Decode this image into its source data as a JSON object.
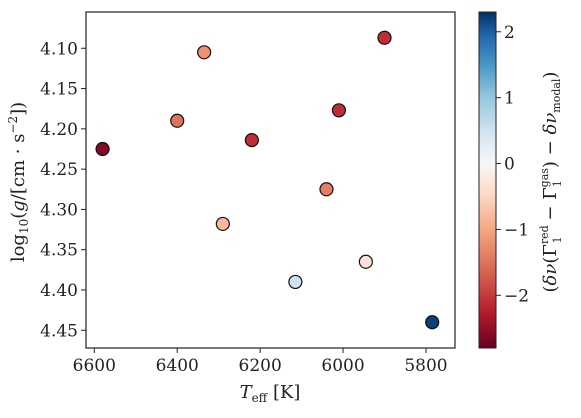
{
  "chart_data": {
    "type": "scatter",
    "xlabel": "T_eff [K]",
    "ylabel": "log10(g/[cm·s^-2])",
    "colorbar_label": "(δν(Γ1^red − Γ1^gas) − δν_modal)",
    "xlim": [
      6620,
      5730
    ],
    "ylim": [
      4.472,
      4.055
    ],
    "x_ticks": [
      6600,
      6400,
      6200,
      6000,
      5800
    ],
    "y_ticks": [
      4.1,
      4.15,
      4.2,
      4.25,
      4.3,
      4.35,
      4.4,
      4.45
    ],
    "x_tick_labels": [
      "6600",
      "6400",
      "6200",
      "6000",
      "5800"
    ],
    "y_tick_labels": [
      "4.10",
      "4.15",
      "4.20",
      "4.25",
      "4.30",
      "4.35",
      "4.40",
      "4.45"
    ],
    "colorbar": {
      "colormap": "RdBu",
      "range": [
        -2.8,
        2.3
      ],
      "ticks": [
        2,
        1,
        0,
        -1,
        -2
      ],
      "tick_labels": [
        "2",
        "1",
        "0",
        "−1",
        "−2"
      ]
    },
    "x_inverted": true,
    "grid": false,
    "points": [
      {
        "x": 6580,
        "y": 4.225,
        "c": -2.6
      },
      {
        "x": 6400,
        "y": 4.19,
        "c": -1.5
      },
      {
        "x": 6335,
        "y": 4.105,
        "c": -1.2
      },
      {
        "x": 6290,
        "y": 4.318,
        "c": -0.8
      },
      {
        "x": 6220,
        "y": 4.214,
        "c": -2.1
      },
      {
        "x": 6115,
        "y": 4.39,
        "c": 0.5
      },
      {
        "x": 6040,
        "y": 4.275,
        "c": -1.4
      },
      {
        "x": 6010,
        "y": 4.177,
        "c": -2.1
      },
      {
        "x": 5945,
        "y": 4.365,
        "c": -0.3
      },
      {
        "x": 5900,
        "y": 4.087,
        "c": -2.1
      },
      {
        "x": 5785,
        "y": 4.44,
        "c": 2.2
      }
    ]
  }
}
